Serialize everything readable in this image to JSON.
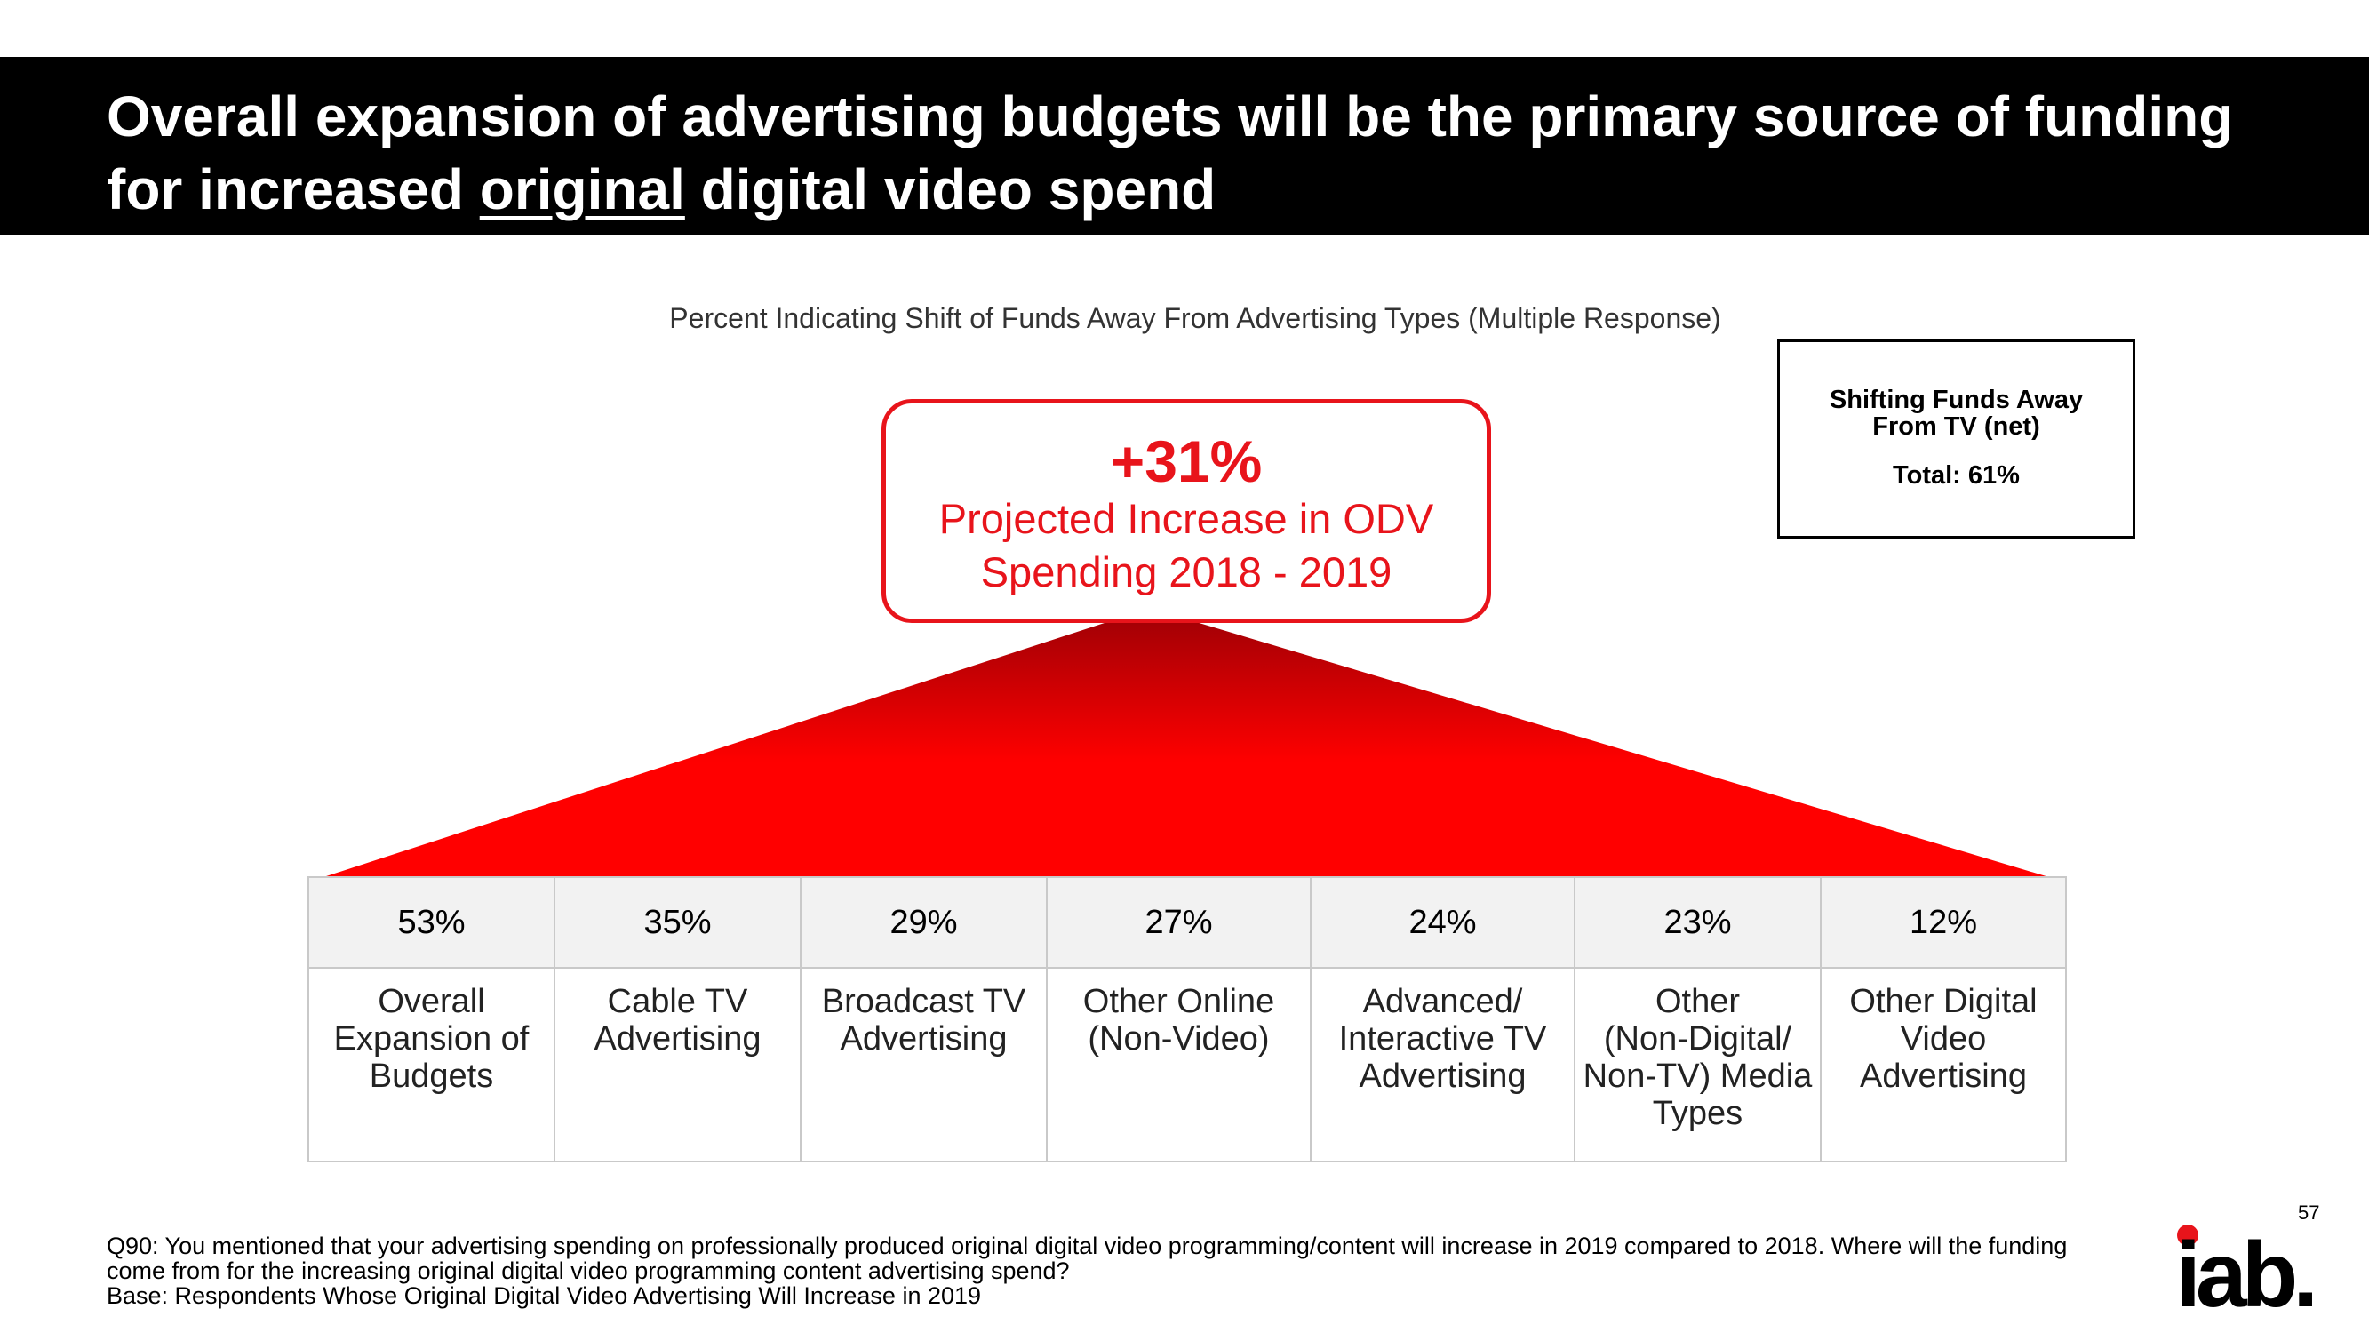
{
  "slide": {
    "title_part1": "Overall expansion of advertising budgets will be the primary source of funding for increased ",
    "title_underlined": "original",
    "title_part2": " digital video spend",
    "subtitle": "Percent Indicating Shift of Funds Away From Advertising Types (Multiple Response)",
    "page_number": "57",
    "logo_text": "iab."
  },
  "callout": {
    "value": "+31%",
    "label_line1": "Projected Increase in ODV",
    "label_line2": "Spending 2018 - 2019"
  },
  "legend_box": {
    "title_line1": "Shifting Funds Away",
    "title_line2": "From  TV (net)",
    "total": "Total:  61%"
  },
  "chart_data": {
    "type": "table",
    "title": "Percent Indicating Shift of Funds Away From Advertising Types (Multiple Response)",
    "categories": [
      "Overall Expansion of Budgets",
      "Cable TV Advertising",
      "Broadcast TV Advertising",
      "Other Online (Non-Video)",
      "Advanced/ Interactive TV Advertising",
      "Other (Non-Digital/ Non-TV) Media Types",
      "Other Digital Video Advertising"
    ],
    "values": [
      53,
      35,
      29,
      27,
      24,
      23,
      12
    ],
    "value_labels": [
      "53%",
      "35%",
      "29%",
      "27%",
      "24%",
      "23%",
      "12%"
    ],
    "label_lines": [
      [
        "Overall",
        "Expansion of",
        "Budgets"
      ],
      [
        "Cable TV",
        "Advertising"
      ],
      [
        "Broadcast TV",
        "Advertising"
      ],
      [
        "Other Online",
        "(Non-Video)"
      ],
      [
        "Advanced/",
        "Interactive TV",
        "Advertising"
      ],
      [
        "Other",
        "(Non-Digital/",
        "Non-TV) Media",
        "Types"
      ],
      [
        "Other Digital",
        "Video",
        "Advertising"
      ]
    ]
  },
  "footnote": {
    "question_line1": "Q90:  You mentioned that your advertising spending on professionally produced original digital video programming/content will increase in 2019 compared to 2018. Where will the funding",
    "question_line2": "come from for the increasing original digital video programming content advertising spend?",
    "base": "Base: Respondents Whose Original Digital Video Advertising Will Increase in 2019"
  },
  "colors": {
    "accent_red": "#e8141b",
    "funnel_dark": "#a50005",
    "funnel_bright": "#ff0000",
    "title_bar": "#000000",
    "logo_dot": "#e8141b"
  }
}
